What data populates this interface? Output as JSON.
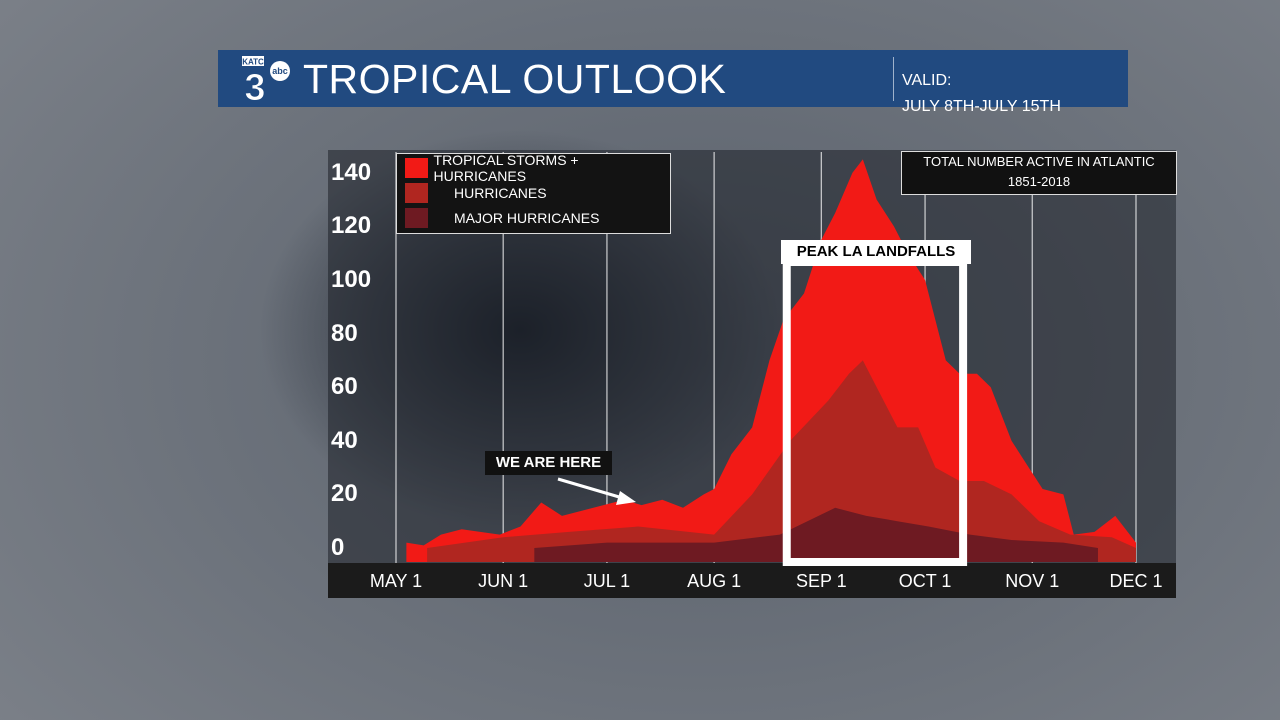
{
  "header": {
    "logo_text": "KATC 3 abc",
    "title": "TROPICAL OUTLOOK",
    "valid_label": "VALID:",
    "valid_range": "JULY 8TH-JULY 15TH"
  },
  "info_box": {
    "line1": "TOTAL NUMBER ACTIVE IN ATLANTIC",
    "line2": "1851-2018"
  },
  "annotations": {
    "peak": "PEAK LA LANDFALLS",
    "peak_range": [
      "08-22",
      "10-12"
    ],
    "here": "WE ARE HERE"
  },
  "chart_data": {
    "type": "area",
    "title": "TOTAL NUMBER ACTIVE IN ATLANTIC 1851-2018",
    "ylim": [
      0,
      145
    ],
    "yticks": [
      0,
      20,
      40,
      60,
      80,
      100,
      120,
      140
    ],
    "xticks": [
      "MAY 1",
      "JUN 1",
      "JUL 1",
      "AUG 1",
      "SEP 1",
      "OCT 1",
      "NOV 1",
      "DEC 1"
    ],
    "grid": "vertical",
    "legend": "top-left",
    "series": [
      {
        "name": "TROPICAL STORMS + HURRICANES",
        "color": "#f21a16",
        "x": [
          "05-04",
          "05-09",
          "05-14",
          "05-20",
          "05-31",
          "06-06",
          "06-12",
          "06-18",
          "06-24",
          "06-30",
          "07-06",
          "07-11",
          "07-17",
          "07-23",
          "07-29",
          "08-01",
          "08-06",
          "08-12",
          "08-17",
          "08-21",
          "08-27",
          "09-01",
          "09-05",
          "09-10",
          "09-13",
          "09-17",
          "09-22",
          "09-26",
          "10-01",
          "10-04",
          "10-07",
          "10-11",
          "10-16",
          "10-20",
          "10-26",
          "10-31",
          "11-04",
          "11-10",
          "11-13",
          "11-19",
          "11-25",
          "12-01"
        ],
        "y": [
          2,
          1,
          5,
          7,
          5,
          8,
          17,
          12,
          14,
          16,
          18,
          16,
          18,
          15,
          20,
          22,
          35,
          45,
          70,
          85,
          95,
          115,
          125,
          140,
          145,
          130,
          120,
          110,
          100,
          85,
          70,
          65,
          65,
          60,
          40,
          30,
          22,
          20,
          5,
          6,
          12,
          2
        ]
      },
      {
        "name": "HURRICANES",
        "color": "#b02620",
        "x": [
          "05-10",
          "06-01",
          "06-20",
          "07-10",
          "08-01",
          "08-12",
          "08-23",
          "09-03",
          "09-09",
          "09-13",
          "09-17",
          "09-23",
          "09-29",
          "10-04",
          "10-11",
          "10-18",
          "10-26",
          "11-03",
          "11-12",
          "11-24",
          "12-01"
        ],
        "y": [
          0,
          4,
          6,
          8,
          5,
          20,
          40,
          55,
          65,
          70,
          60,
          45,
          45,
          30,
          25,
          25,
          20,
          10,
          5,
          4,
          0
        ]
      },
      {
        "name": "MAJOR HURRICANES",
        "color": "#6e1a22",
        "x": [
          "06-10",
          "07-01",
          "08-01",
          "08-20",
          "09-05",
          "09-14",
          "09-23",
          "10-02",
          "10-14",
          "10-26",
          "11-10",
          "11-20"
        ],
        "y": [
          0,
          2,
          2,
          5,
          15,
          12,
          10,
          8,
          5,
          3,
          2,
          0
        ]
      }
    ]
  }
}
